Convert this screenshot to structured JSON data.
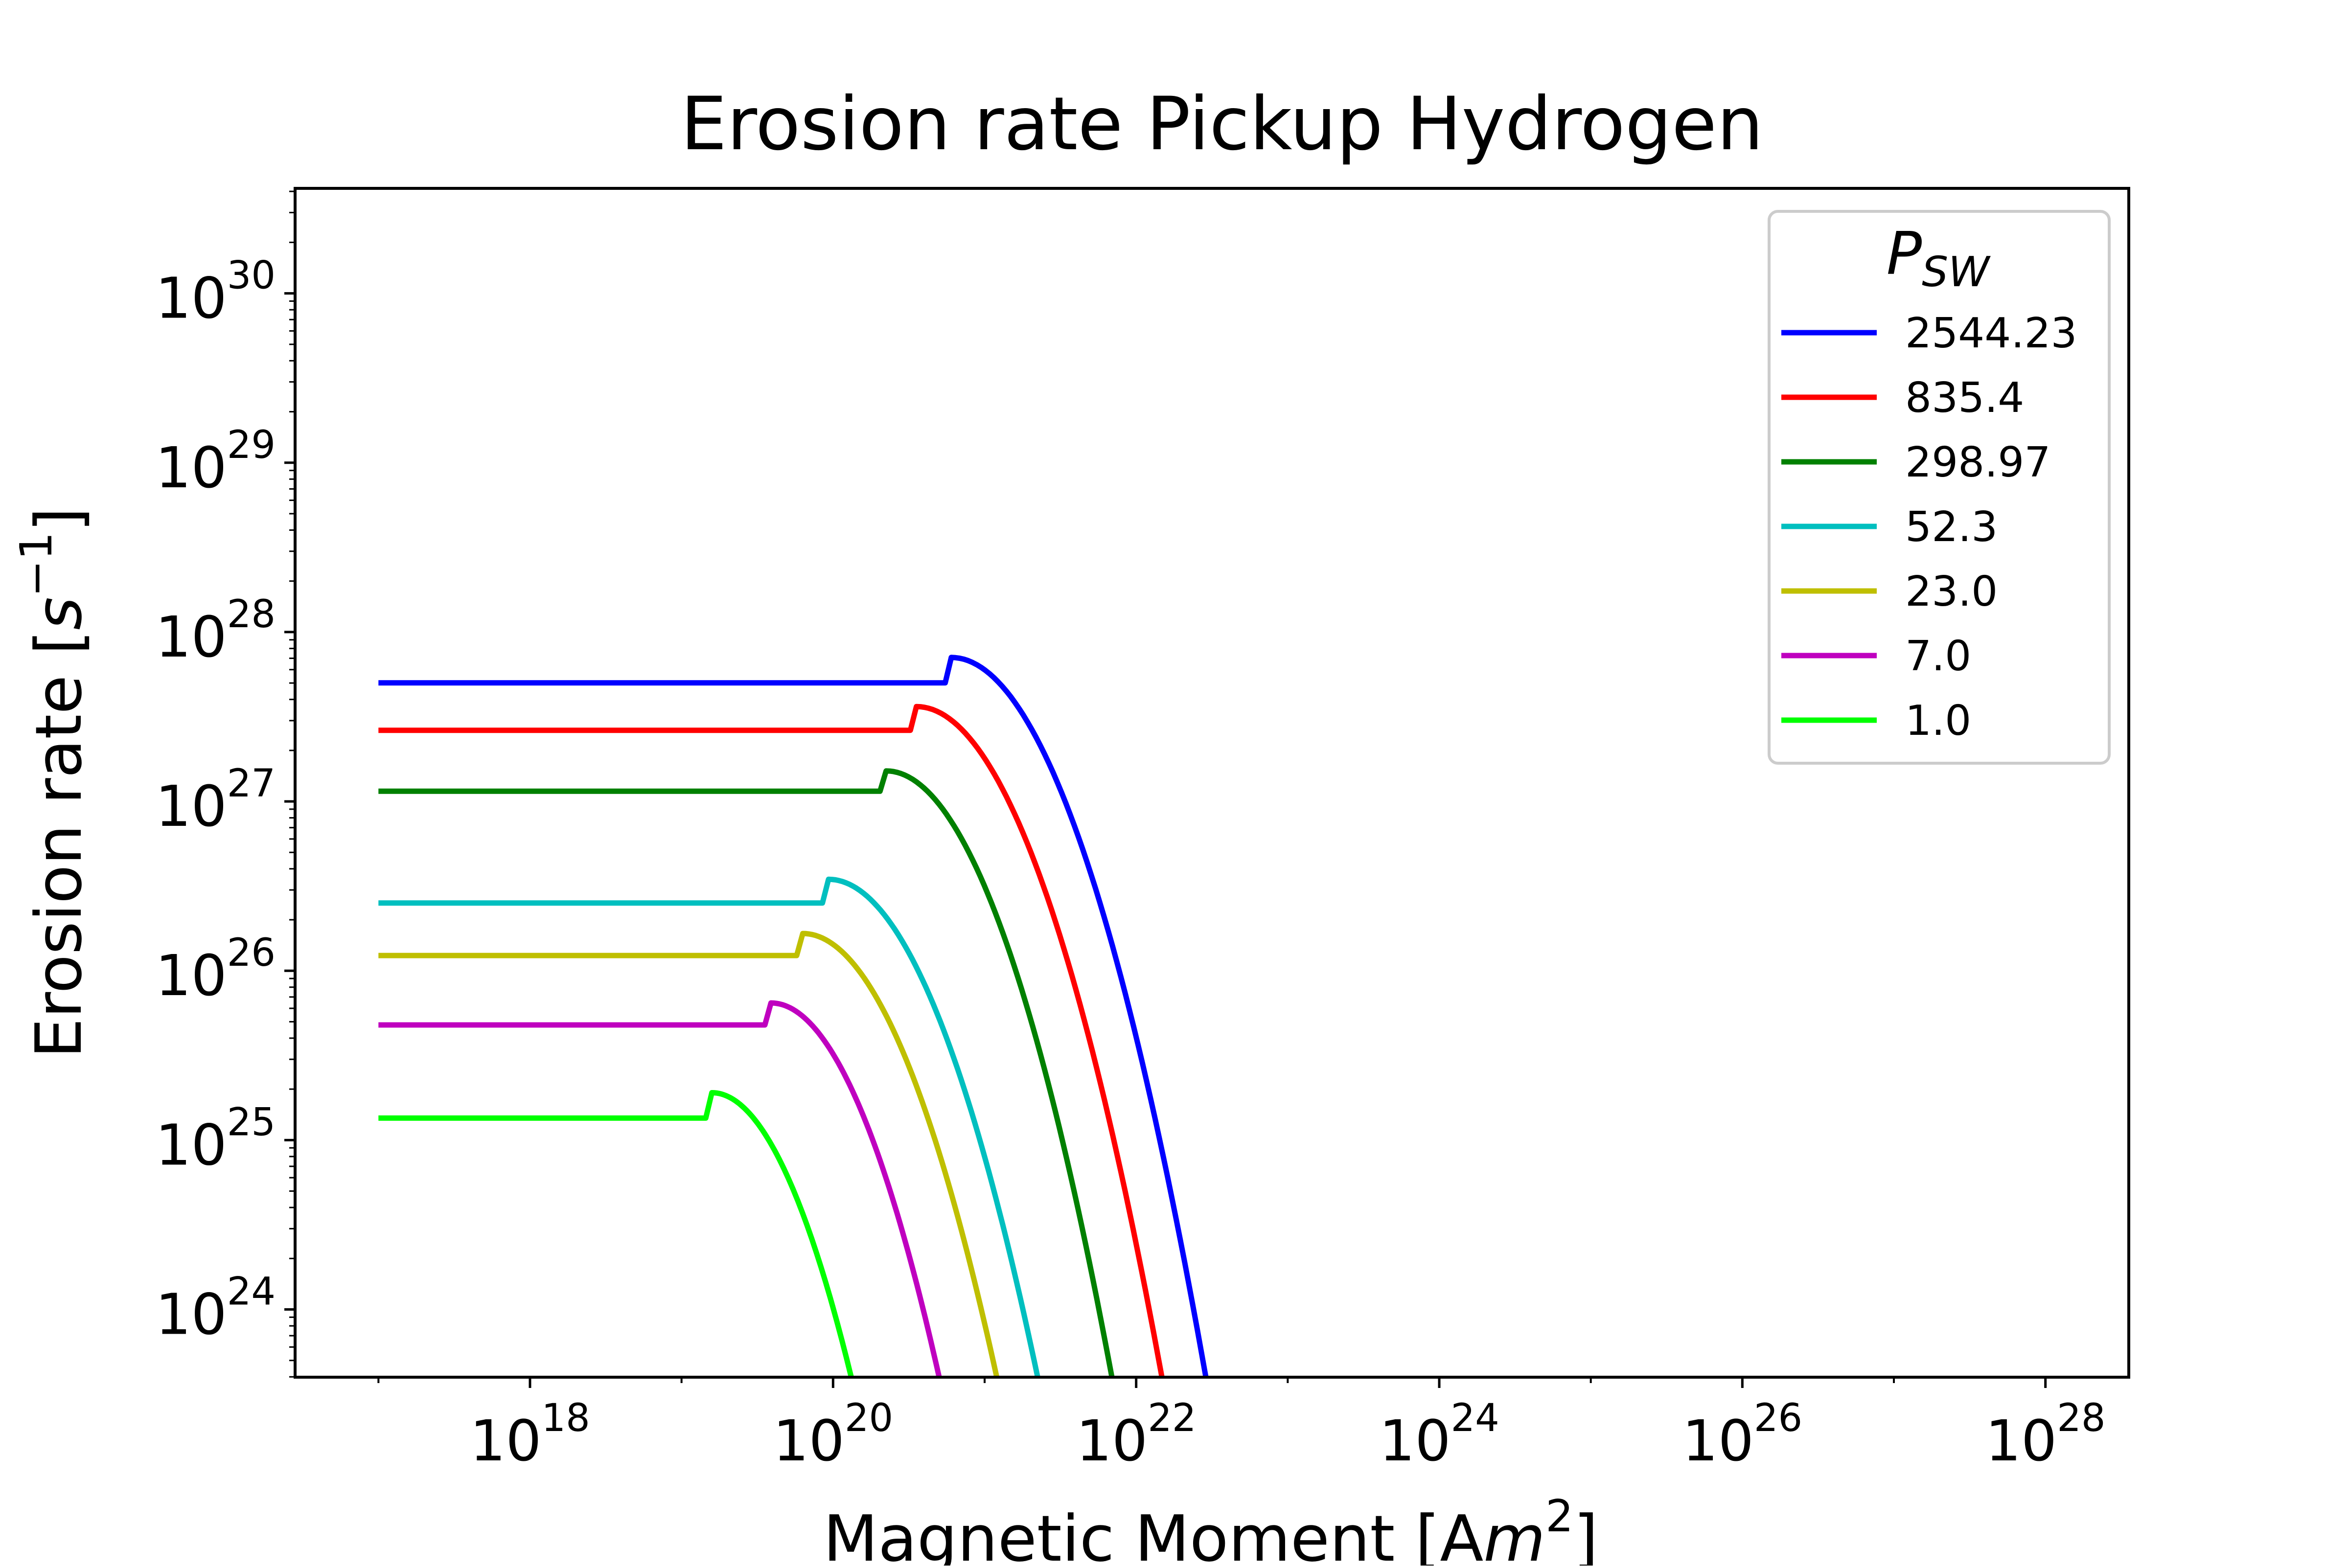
{
  "chart_data": {
    "type": "line",
    "title": "Erosion rate Pickup Hydrogen",
    "xlabel": {
      "text": "Magnetic Moment [A",
      "var": "m",
      "sup": "2",
      "close": "]"
    },
    "ylabel": {
      "text": "Erosion rate [",
      "var": "s",
      "sup": "−1",
      "close": "]"
    },
    "xscale": "log",
    "yscale": "log",
    "xlim_log10": [
      16.45,
      28.55
    ],
    "ylim_log10": [
      23.6,
      30.62
    ],
    "grid": false,
    "x_ticks": [
      {
        "base": "10",
        "exp": "18",
        "value": 18
      },
      {
        "base": "10",
        "exp": "20",
        "value": 20
      },
      {
        "base": "10",
        "exp": "22",
        "value": 22
      },
      {
        "base": "10",
        "exp": "24",
        "value": 24
      },
      {
        "base": "10",
        "exp": "26",
        "value": 26
      },
      {
        "base": "10",
        "exp": "28",
        "value": 28
      }
    ],
    "y_ticks": [
      {
        "base": "10",
        "exp": "24",
        "value": 24
      },
      {
        "base": "10",
        "exp": "25",
        "value": 25
      },
      {
        "base": "10",
        "exp": "26",
        "value": 26
      },
      {
        "base": "10",
        "exp": "27",
        "value": 27
      },
      {
        "base": "10",
        "exp": "28",
        "value": 28
      },
      {
        "base": "10",
        "exp": "29",
        "value": 29
      },
      {
        "base": "10",
        "exp": "30",
        "value": 30
      }
    ],
    "legend": {
      "title_main": "P",
      "title_sub": "SW",
      "position": "upper right"
    },
    "series": [
      {
        "name": "2544.23",
        "color": "#0000ff",
        "plateau_log10": 27.7,
        "peak_x_log10": 20.78,
        "peak_log10": 27.85,
        "end_x_log10": 22.46
      },
      {
        "name": "835.4",
        "color": "#ff0000",
        "plateau_log10": 27.42,
        "peak_x_log10": 20.55,
        "peak_log10": 27.56,
        "end_x_log10": 22.17
      },
      {
        "name": "298.97",
        "color": "#008000",
        "plateau_log10": 27.06,
        "peak_x_log10": 20.35,
        "peak_log10": 27.18,
        "end_x_log10": 21.84
      },
      {
        "name": "52.3",
        "color": "#00bfbf",
        "plateau_log10": 26.4,
        "peak_x_log10": 19.97,
        "peak_log10": 26.54,
        "end_x_log10": 21.35
      },
      {
        "name": "23.0",
        "color": "#bfbf00",
        "plateau_log10": 26.09,
        "peak_x_log10": 19.8,
        "peak_log10": 26.22,
        "end_x_log10": 21.08
      },
      {
        "name": "7.0",
        "color": "#bf00bf",
        "plateau_log10": 25.68,
        "peak_x_log10": 19.59,
        "peak_log10": 25.81,
        "end_x_log10": 20.7
      },
      {
        "name": "1.0",
        "color": "#00ff00",
        "plateau_log10": 25.13,
        "peak_x_log10": 19.2,
        "peak_log10": 25.28,
        "end_x_log10": 20.12
      }
    ],
    "x_start_log10": 17.0
  }
}
